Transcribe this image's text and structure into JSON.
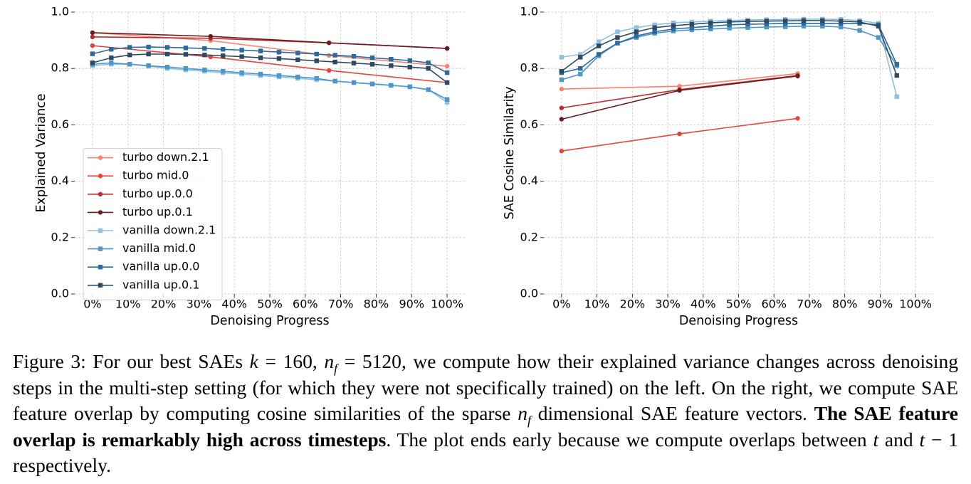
{
  "chart_data": [
    {
      "type": "line",
      "xlabel": "Denoising Progress",
      "ylabel": "Explained Variance",
      "legend": "center left",
      "grid": true,
      "xlim": [
        -5,
        105
      ],
      "ylim": [
        0,
        1
      ],
      "xticks": [
        {
          "value": 0,
          "label": "0%"
        },
        {
          "value": 10,
          "label": "10%"
        },
        {
          "value": 20,
          "label": "20%"
        },
        {
          "value": 30,
          "label": "30%"
        },
        {
          "value": 40,
          "label": "40%"
        },
        {
          "value": 50,
          "label": "50%"
        },
        {
          "value": 60,
          "label": "60%"
        },
        {
          "value": 70,
          "label": "70%"
        },
        {
          "value": 80,
          "label": "80%"
        },
        {
          "value": 90,
          "label": "90%"
        },
        {
          "value": 100,
          "label": "100%"
        }
      ],
      "yticks": [
        {
          "value": 0,
          "label": "0.0"
        },
        {
          "value": 0.2,
          "label": "0.2"
        },
        {
          "value": 0.4,
          "label": "0.4"
        },
        {
          "value": 0.6,
          "label": "0.6"
        },
        {
          "value": 0.8,
          "label": "0.8"
        },
        {
          "value": 1,
          "label": "1.0"
        }
      ],
      "series": [
        {
          "name": "turbo down.2.1",
          "color": "#f7826b",
          "marker": "circle",
          "x": [
            0,
            33.3,
            66.7,
            100
          ],
          "values": [
            0.927,
            0.899,
            0.846,
            0.808
          ]
        },
        {
          "name": "turbo mid.0",
          "color": "#e6433a",
          "marker": "circle",
          "x": [
            0,
            33.3,
            66.7,
            100
          ],
          "values": [
            0.881,
            0.841,
            0.793,
            0.75
          ]
        },
        {
          "name": "turbo up.0.0",
          "color": "#bd2a2e",
          "marker": "circle",
          "x": [
            0,
            33.3,
            66.7,
            100
          ],
          "values": [
            0.912,
            0.907,
            0.891,
            0.871
          ]
        },
        {
          "name": "turbo up.0.1",
          "color": "#6b1c20",
          "marker": "circle",
          "x": [
            0,
            33.3,
            66.7,
            100
          ],
          "values": [
            0.927,
            0.914,
            0.891,
            0.871
          ]
        },
        {
          "name": "vanilla down.2.1",
          "color": "#8ec0e0",
          "marker": "square",
          "x": [
            0,
            5.3,
            10.5,
            15.8,
            21.1,
            26.3,
            31.6,
            36.8,
            42.1,
            47.4,
            52.6,
            57.9,
            63.2,
            68.4,
            73.7,
            78.9,
            84.2,
            89.5,
            94.7,
            100
          ],
          "values": [
            0.81,
            0.815,
            0.815,
            0.808,
            0.8,
            0.795,
            0.79,
            0.785,
            0.78,
            0.775,
            0.77,
            0.765,
            0.76,
            0.755,
            0.75,
            0.745,
            0.74,
            0.735,
            0.725,
            0.68
          ]
        },
        {
          "name": "vanilla mid.0",
          "color": "#4c96c9",
          "marker": "square",
          "x": [
            0,
            5.3,
            10.5,
            15.8,
            21.1,
            26.3,
            31.6,
            36.8,
            42.1,
            47.4,
            52.6,
            57.9,
            63.2,
            68.4,
            73.7,
            78.9,
            84.2,
            89.5,
            94.7,
            100
          ],
          "values": [
            0.815,
            0.82,
            0.815,
            0.81,
            0.805,
            0.8,
            0.795,
            0.79,
            0.785,
            0.78,
            0.775,
            0.77,
            0.765,
            0.755,
            0.75,
            0.745,
            0.74,
            0.735,
            0.725,
            0.69
          ]
        },
        {
          "name": "vanilla up.0.0",
          "color": "#2b6a9d",
          "marker": "square",
          "x": [
            0,
            5.3,
            10.5,
            15.8,
            21.1,
            26.3,
            31.6,
            36.8,
            42.1,
            47.4,
            52.6,
            57.9,
            63.2,
            68.4,
            73.7,
            78.9,
            84.2,
            89.5,
            94.7,
            100
          ],
          "values": [
            0.852,
            0.868,
            0.875,
            0.876,
            0.875,
            0.873,
            0.871,
            0.868,
            0.865,
            0.862,
            0.858,
            0.855,
            0.851,
            0.847,
            0.843,
            0.838,
            0.833,
            0.828,
            0.82,
            0.785
          ]
        },
        {
          "name": "vanilla up.0.1",
          "color": "#2d4a62",
          "marker": "square",
          "x": [
            0,
            5.3,
            10.5,
            15.8,
            21.1,
            26.3,
            31.6,
            36.8,
            42.1,
            47.4,
            52.6,
            57.9,
            63.2,
            68.4,
            73.7,
            78.9,
            84.2,
            89.5,
            94.7,
            100
          ],
          "values": [
            0.82,
            0.838,
            0.848,
            0.851,
            0.851,
            0.85,
            0.848,
            0.845,
            0.842,
            0.838,
            0.835,
            0.831,
            0.827,
            0.823,
            0.819,
            0.815,
            0.81,
            0.805,
            0.8,
            0.75
          ]
        }
      ]
    },
    {
      "type": "line",
      "xlabel": "Denoising Progress",
      "ylabel": "SAE Cosine Similarity",
      "grid": true,
      "xlim": [
        -5,
        105
      ],
      "ylim": [
        0,
        1
      ],
      "xticks": [
        {
          "value": 0,
          "label": "0%"
        },
        {
          "value": 10,
          "label": "10%"
        },
        {
          "value": 20,
          "label": "20%"
        },
        {
          "value": 30,
          "label": "30%"
        },
        {
          "value": 40,
          "label": "40%"
        },
        {
          "value": 50,
          "label": "50%"
        },
        {
          "value": 60,
          "label": "60%"
        },
        {
          "value": 70,
          "label": "70%"
        },
        {
          "value": 80,
          "label": "80%"
        },
        {
          "value": 90,
          "label": "90%"
        },
        {
          "value": 100,
          "label": "100%"
        }
      ],
      "yticks": [
        {
          "value": 0,
          "label": "0.0"
        },
        {
          "value": 0.2,
          "label": "0.2"
        },
        {
          "value": 0.4,
          "label": "0.4"
        },
        {
          "value": 0.6,
          "label": "0.6"
        },
        {
          "value": 0.8,
          "label": "0.8"
        },
        {
          "value": 1,
          "label": "1.0"
        }
      ],
      "series": [
        {
          "name": "turbo down.2.1",
          "color": "#f7826b",
          "marker": "circle",
          "x": [
            0,
            33.3,
            66.7
          ],
          "values": [
            0.727,
            0.737,
            0.782
          ]
        },
        {
          "name": "turbo mid.0",
          "color": "#e6433a",
          "marker": "circle",
          "x": [
            0,
            33.3,
            66.7
          ],
          "values": [
            0.507,
            0.568,
            0.623
          ]
        },
        {
          "name": "turbo up.0.0",
          "color": "#bd2a2e",
          "marker": "circle",
          "x": [
            0,
            33.3,
            66.7
          ],
          "values": [
            0.66,
            0.725,
            0.775
          ]
        },
        {
          "name": "turbo up.0.1",
          "color": "#6b1c20",
          "marker": "circle",
          "x": [
            0,
            33.3,
            66.7
          ],
          "values": [
            0.62,
            0.722,
            0.773
          ]
        },
        {
          "name": "vanilla down.2.1",
          "color": "#8ec0e0",
          "marker": "square",
          "x": [
            0,
            5.3,
            10.5,
            15.8,
            21.1,
            26.3,
            31.6,
            36.8,
            42.1,
            47.4,
            52.6,
            57.9,
            63.2,
            68.4,
            73.7,
            78.9,
            84.2,
            89.5,
            94.7
          ],
          "values": [
            0.84,
            0.85,
            0.895,
            0.93,
            0.945,
            0.955,
            0.962,
            0.965,
            0.968,
            0.97,
            0.972,
            0.973,
            0.974,
            0.975,
            0.975,
            0.974,
            0.97,
            0.96,
            0.7
          ]
        },
        {
          "name": "vanilla mid.0",
          "color": "#4c96c9",
          "marker": "square",
          "x": [
            0,
            5.3,
            10.5,
            15.8,
            21.1,
            26.3,
            31.6,
            36.8,
            42.1,
            47.4,
            52.6,
            57.9,
            63.2,
            68.4,
            73.7,
            78.9,
            84.2,
            89.5,
            94.7
          ],
          "values": [
            0.76,
            0.78,
            0.845,
            0.89,
            0.91,
            0.925,
            0.933,
            0.937,
            0.94,
            0.943,
            0.945,
            0.947,
            0.948,
            0.95,
            0.95,
            0.947,
            0.935,
            0.91,
            0.81
          ]
        },
        {
          "name": "vanilla up.0.0",
          "color": "#2b6a9d",
          "marker": "square",
          "x": [
            0,
            5.3,
            10.5,
            15.8,
            21.1,
            26.3,
            31.6,
            36.8,
            42.1,
            47.4,
            52.6,
            57.9,
            63.2,
            68.4,
            73.7,
            78.9,
            84.2,
            89.5,
            94.7
          ],
          "values": [
            0.785,
            0.8,
            0.85,
            0.89,
            0.915,
            0.93,
            0.94,
            0.945,
            0.95,
            0.955,
            0.957,
            0.958,
            0.96,
            0.96,
            0.96,
            0.96,
            0.96,
            0.955,
            0.815
          ]
        },
        {
          "name": "vanilla up.0.1",
          "color": "#2d4a62",
          "marker": "square",
          "x": [
            0,
            5.3,
            10.5,
            15.8,
            21.1,
            26.3,
            31.6,
            36.8,
            42.1,
            47.4,
            52.6,
            57.9,
            63.2,
            68.4,
            73.7,
            78.9,
            84.2,
            89.5,
            94.7
          ],
          "values": [
            0.79,
            0.84,
            0.88,
            0.91,
            0.93,
            0.945,
            0.952,
            0.957,
            0.962,
            0.965,
            0.967,
            0.968,
            0.969,
            0.97,
            0.97,
            0.968,
            0.965,
            0.95,
            0.775
          ]
        }
      ]
    }
  ],
  "caption": [
    "Figure 3: For our best SAEs ",
    "k",
    " = 160, ",
    "n",
    "f",
    " = 5120, we compute how their explained variance changes across denoising steps in the multi-step setting (for which they were not specifically trained) on the left. On the right, we compute SAE feature overlap by computing cosine similarities of the sparse ",
    "n",
    "f",
    " dimensional SAE feature vectors. ",
    "The SAE feature overlap is remarkably high across timesteps",
    ". The plot ends early because we compute overlaps between ",
    "t",
    " and ",
    "t",
    " − 1 respectively."
  ]
}
